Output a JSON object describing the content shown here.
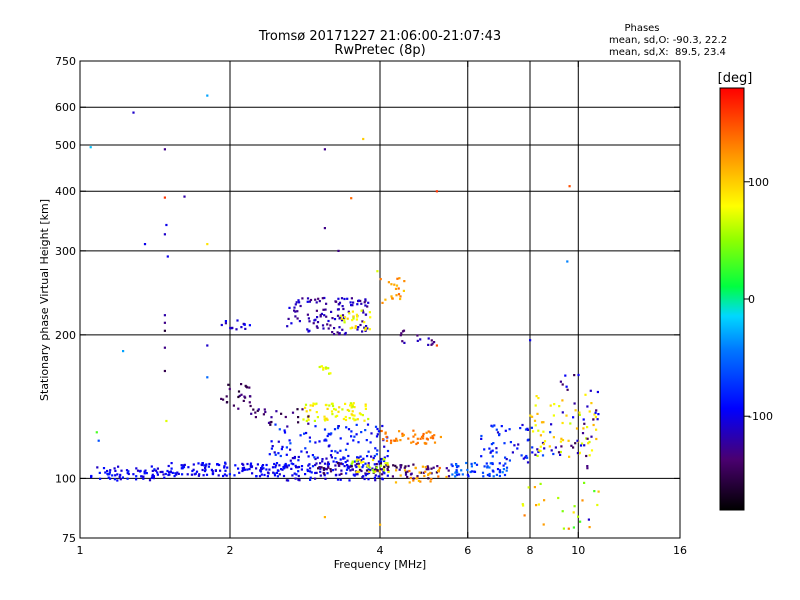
{
  "title": {
    "line1": "Tromsø 20171227 21:06:00-21:07:43",
    "line2": "RwPretec (8p)"
  },
  "phases_box": {
    "heading": "Phases",
    "line_o": "mean, sd,O: -90.3, 22.2",
    "line_x": "mean, sd,X:  89.5, 23.4"
  },
  "colorbar": {
    "label": "[deg]",
    "range": [
      -180,
      180
    ],
    "ticks": [
      {
        "value": 100,
        "label": "100"
      },
      {
        "value": 0,
        "label": "0"
      },
      {
        "value": -100,
        "label": "-100"
      }
    ]
  },
  "chart_data": {
    "type": "scatter",
    "xlabel": "Frequency [MHz]",
    "ylabel": "Stationary phase Virtual Height [km]",
    "xscale": "log",
    "yscale": "log",
    "xlim": [
      1,
      16
    ],
    "ylim": [
      75,
      750
    ],
    "grid": true,
    "x_ticks": [
      {
        "value": 1,
        "label": "1"
      },
      {
        "value": 2,
        "label": "2"
      },
      {
        "value": 4,
        "label": "4"
      },
      {
        "value": 6,
        "label": "6"
      },
      {
        "value": 8,
        "label": "8"
      },
      {
        "value": 10,
        "label": "10"
      },
      {
        "value": 16,
        "label": "16"
      }
    ],
    "y_ticks": [
      {
        "value": 75,
        "label": "75"
      },
      {
        "value": 100,
        "label": "100"
      },
      {
        "value": 200,
        "label": "200"
      },
      {
        "value": 300,
        "label": "300"
      },
      {
        "value": 400,
        "label": "400"
      },
      {
        "value": 500,
        "label": "500"
      },
      {
        "value": 600,
        "label": "600"
      },
      {
        "value": 750,
        "label": "750"
      }
    ],
    "x_grid_values": [
      2,
      4,
      6,
      8,
      10
    ],
    "y_grid_values": [
      100,
      200,
      300,
      400,
      500,
      600
    ],
    "clusters": [
      {
        "f": [
          1.05,
          1.5
        ],
        "h": [
          99,
          106
        ],
        "phase": [
          -115,
          -80
        ],
        "n": 70
      },
      {
        "f": [
          1.5,
          2.6
        ],
        "h": [
          101,
          108
        ],
        "phase": [
          -110,
          -85
        ],
        "n": 140
      },
      {
        "f": [
          2.6,
          4.2
        ],
        "h": [
          99,
          112
        ],
        "phase": [
          -115,
          -80
        ],
        "n": 150
      },
      {
        "f": [
          3.0,
          4.2
        ],
        "h": [
          102,
          108
        ],
        "phase": [
          -160,
          -120
        ],
        "n": 40
      },
      {
        "f": [
          3.5,
          4.2
        ],
        "h": [
          103,
          110
        ],
        "phase": [
          50,
          100
        ],
        "n": 35
      },
      {
        "f": [
          4.0,
          5.5
        ],
        "h": [
          100,
          107
        ],
        "phase": [
          -160,
          -120
        ],
        "n": 40
      },
      {
        "f": [
          4.3,
          5.5
        ],
        "h": [
          98,
          106
        ],
        "phase": [
          100,
          140
        ],
        "n": 30
      },
      {
        "f": [
          5.5,
          7.2
        ],
        "h": [
          101,
          108
        ],
        "phase": [
          -90,
          -40
        ],
        "n": 60
      },
      {
        "f": [
          2.4,
          4.2
        ],
        "h": [
          110,
          130
        ],
        "phase": [
          -110,
          -60
        ],
        "n": 90
      },
      {
        "f": [
          4.0,
          5.3
        ],
        "h": [
          118,
          126
        ],
        "phase": [
          120,
          145
        ],
        "n": 45
      },
      {
        "f": [
          2.8,
          3.8
        ],
        "h": [
          132,
          144
        ],
        "phase": [
          60,
          95
        ],
        "n": 70
      },
      {
        "f": [
          2.2,
          2.9
        ],
        "h": [
          128,
          140
        ],
        "phase": [
          -160,
          -120
        ],
        "n": 25
      },
      {
        "f": [
          1.9,
          2.2
        ],
        "h": [
          140,
          158
        ],
        "phase": [
          -165,
          -130
        ],
        "n": 25
      },
      {
        "f": [
          3.0,
          3.2
        ],
        "h": [
          165,
          172
        ],
        "phase": [
          60,
          90
        ],
        "n": 10
      },
      {
        "f": [
          2.6,
          3.8
        ],
        "h": [
          200,
          240
        ],
        "phase": [
          -135,
          -100
        ],
        "n": 120
      },
      {
        "f": [
          3.3,
          3.9
        ],
        "h": [
          205,
          225
        ],
        "phase": [
          60,
          100
        ],
        "n": 25
      },
      {
        "f": [
          1.92,
          2.2
        ],
        "h": [
          205,
          215
        ],
        "phase": [
          -120,
          -90
        ],
        "n": 15
      },
      {
        "f": [
          4.0,
          4.5
        ],
        "h": [
          230,
          265
        ],
        "phase": [
          100,
          140
        ],
        "n": 20
      },
      {
        "f": [
          4.4,
          5.2
        ],
        "h": [
          190,
          205
        ],
        "phase": [
          -140,
          -110
        ],
        "n": 15
      },
      {
        "f": [
          6.3,
          9.2
        ],
        "h": [
          108,
          130
        ],
        "phase": [
          -120,
          -60
        ],
        "n": 60
      },
      {
        "f": [
          8.0,
          11.0
        ],
        "h": [
          110,
          150
        ],
        "phase": [
          60,
          110
        ],
        "n": 60
      },
      {
        "f": [
          9.0,
          11.0
        ],
        "h": [
          105,
          165
        ],
        "phase": [
          -150,
          -90
        ],
        "n": 35
      },
      {
        "f": [
          7.6,
          11.0
        ],
        "h": [
          78,
          98
        ],
        "phase": [
          20,
          140
        ],
        "n": 25
      }
    ],
    "points": [
      {
        "x": 1.28,
        "y": 585,
        "phase": -110
      },
      {
        "x": 1.48,
        "y": 490,
        "phase": -130
      },
      {
        "x": 1.8,
        "y": 635,
        "phase": -30
      },
      {
        "x": 1.05,
        "y": 495,
        "phase": -20
      },
      {
        "x": 1.48,
        "y": 388,
        "phase": 160
      },
      {
        "x": 1.62,
        "y": 390,
        "phase": -120
      },
      {
        "x": 1.49,
        "y": 340,
        "phase": -100
      },
      {
        "x": 1.48,
        "y": 325,
        "phase": -110
      },
      {
        "x": 1.35,
        "y": 310,
        "phase": -100
      },
      {
        "x": 1.5,
        "y": 292,
        "phase": -100
      },
      {
        "x": 3.1,
        "y": 490,
        "phase": -130
      },
      {
        "x": 3.5,
        "y": 387,
        "phase": 140
      },
      {
        "x": 3.1,
        "y": 335,
        "phase": -130
      },
      {
        "x": 1.8,
        "y": 310,
        "phase": 90
      },
      {
        "x": 5.2,
        "y": 400,
        "phase": 160
      },
      {
        "x": 9.6,
        "y": 410,
        "phase": 150
      },
      {
        "x": 9.5,
        "y": 285,
        "phase": -40
      },
      {
        "x": 3.3,
        "y": 300,
        "phase": -130
      },
      {
        "x": 1.48,
        "y": 220,
        "phase": -120
      },
      {
        "x": 1.48,
        "y": 212,
        "phase": -130
      },
      {
        "x": 1.48,
        "y": 204,
        "phase": -160
      },
      {
        "x": 1.48,
        "y": 188,
        "phase": -130
      },
      {
        "x": 1.48,
        "y": 168,
        "phase": -150
      },
      {
        "x": 1.8,
        "y": 190,
        "phase": -110
      },
      {
        "x": 1.22,
        "y": 185,
        "phase": -30
      },
      {
        "x": 1.49,
        "y": 132,
        "phase": 70
      },
      {
        "x": 1.08,
        "y": 125,
        "phase": 30
      },
      {
        "x": 1.09,
        "y": 120,
        "phase": -60
      },
      {
        "x": 1.8,
        "y": 163,
        "phase": -50
      },
      {
        "x": 5.2,
        "y": 190,
        "phase": 150
      },
      {
        "x": 8.0,
        "y": 195,
        "phase": -100
      },
      {
        "x": 10.5,
        "y": 82,
        "phase": -110
      },
      {
        "x": 3.1,
        "y": 83,
        "phase": 110
      },
      {
        "x": 4.0,
        "y": 80,
        "phase": 110
      },
      {
        "x": 3.95,
        "y": 272,
        "phase": 70
      },
      {
        "x": 3.7,
        "y": 515,
        "phase": 100
      }
    ]
  },
  "axes_labels": {
    "x": "Frequency [MHz]",
    "y": "Stationary phase Virtual Height [km]"
  }
}
